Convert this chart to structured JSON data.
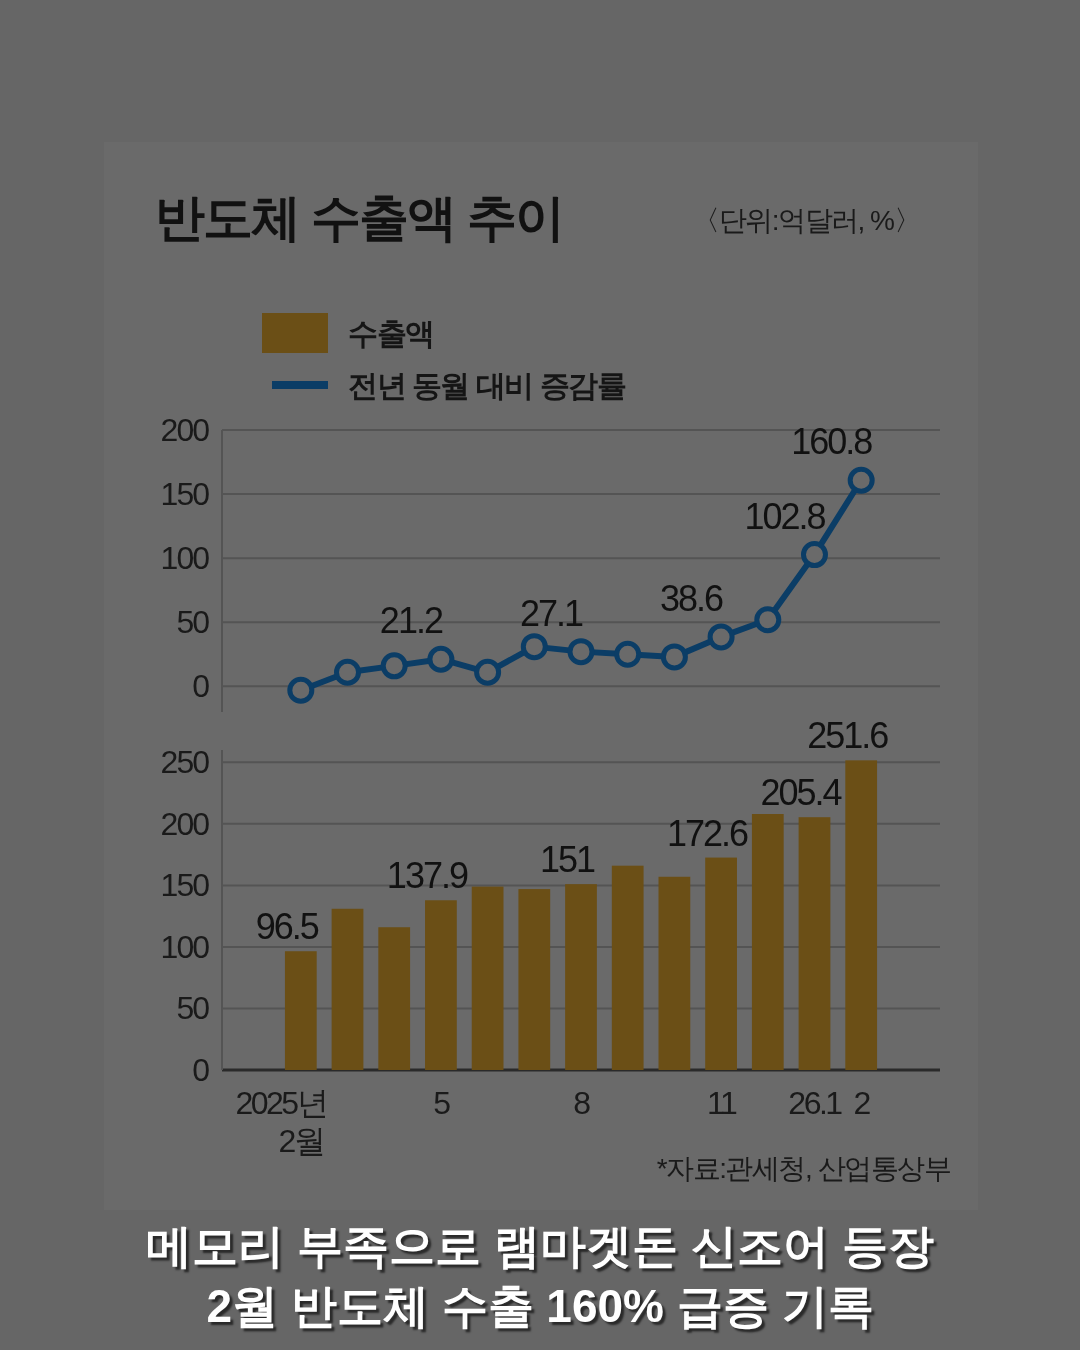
{
  "chart_data": [
    {
      "type": "line",
      "title": "반도체 수출액 추이",
      "subtitle": "〈단위:억달러, %〉",
      "categories": [
        null,
        null,
        null,
        null,
        null,
        null,
        null,
        null,
        null,
        null,
        null,
        null,
        null
      ],
      "series": [
        {
          "name": "전년 동월 대비 증감률",
          "color": "#0b3d66",
          "values": [
            -3,
            11,
            16,
            21.2,
            11,
            31,
            27.1,
            25,
            23,
            38.6,
            52,
            102.8,
            160.8
          ],
          "value_labels": [
            null,
            null,
            null,
            "21.2",
            null,
            null,
            "27.1",
            null,
            null,
            "38.6",
            null,
            "102.8",
            "160.8"
          ]
        }
      ],
      "ylim": [
        -20,
        200
      ],
      "yticks": [
        0,
        50,
        100,
        150,
        200
      ],
      "grid": "y",
      "legend": "top left",
      "marker": "circle",
      "tick_labels": "y",
      "annotations": [
        "메모리 부족으로 램마겟돈 신조어 등장",
        "2월 반도체 수출 160% 급증 기록"
      ]
    },
    {
      "type": "bar",
      "categories": [
        "2025년 2월",
        null,
        null,
        "5",
        null,
        null,
        "8",
        null,
        null,
        "11",
        null,
        "26.1",
        "2"
      ],
      "series": [
        {
          "name": "수출액",
          "color": "#6b4f16",
          "values": [
            96.5,
            131,
            116,
            137.9,
            149,
            147,
            151,
            166,
            157,
            172.6,
            208,
            205.4,
            251.6
          ],
          "value_labels": [
            "96.5",
            null,
            null,
            "137.9",
            null,
            null,
            "151",
            null,
            null,
            "172.6",
            null,
            "205.4",
            "251.6"
          ]
        }
      ],
      "ylim": [
        0,
        260
      ],
      "yticks": [
        0,
        50,
        100,
        150,
        200,
        250
      ],
      "grid": "y",
      "legend": "top left",
      "annotations": [
        "*자료:관세청, 산업통상부"
      ]
    }
  ]
}
